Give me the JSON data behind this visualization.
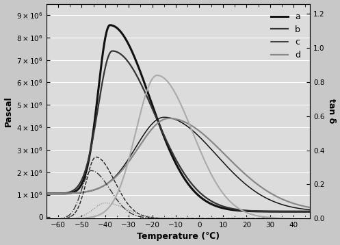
{
  "x_min": -65,
  "x_max": 47,
  "x_ticks": [
    -60,
    -50,
    -40,
    -30,
    -20,
    -10,
    0,
    10,
    20,
    30,
    40
  ],
  "y_left_min": -50000.0,
  "y_left_max": 9500000.0,
  "y_left_ticks": [
    0,
    1000000.0,
    2000000.0,
    3000000.0,
    4000000.0,
    5000000.0,
    6000000.0,
    7000000.0,
    8000000.0,
    9000000.0
  ],
  "y_right_min": 0.0,
  "y_right_max": 1.26,
  "y_right_ticks": [
    0.0,
    0.2,
    0.4,
    0.6,
    0.8,
    1.0,
    1.2
  ],
  "xlabel": "Temperature (℃)",
  "ylabel_left": "Pascal",
  "ylabel_right": "tan δ",
  "legend": [
    "a",
    "b",
    "c",
    "d"
  ],
  "bg_color": "#c8c8c8",
  "plot_bg": "#dcdcdc",
  "grid_color": "#ffffff"
}
